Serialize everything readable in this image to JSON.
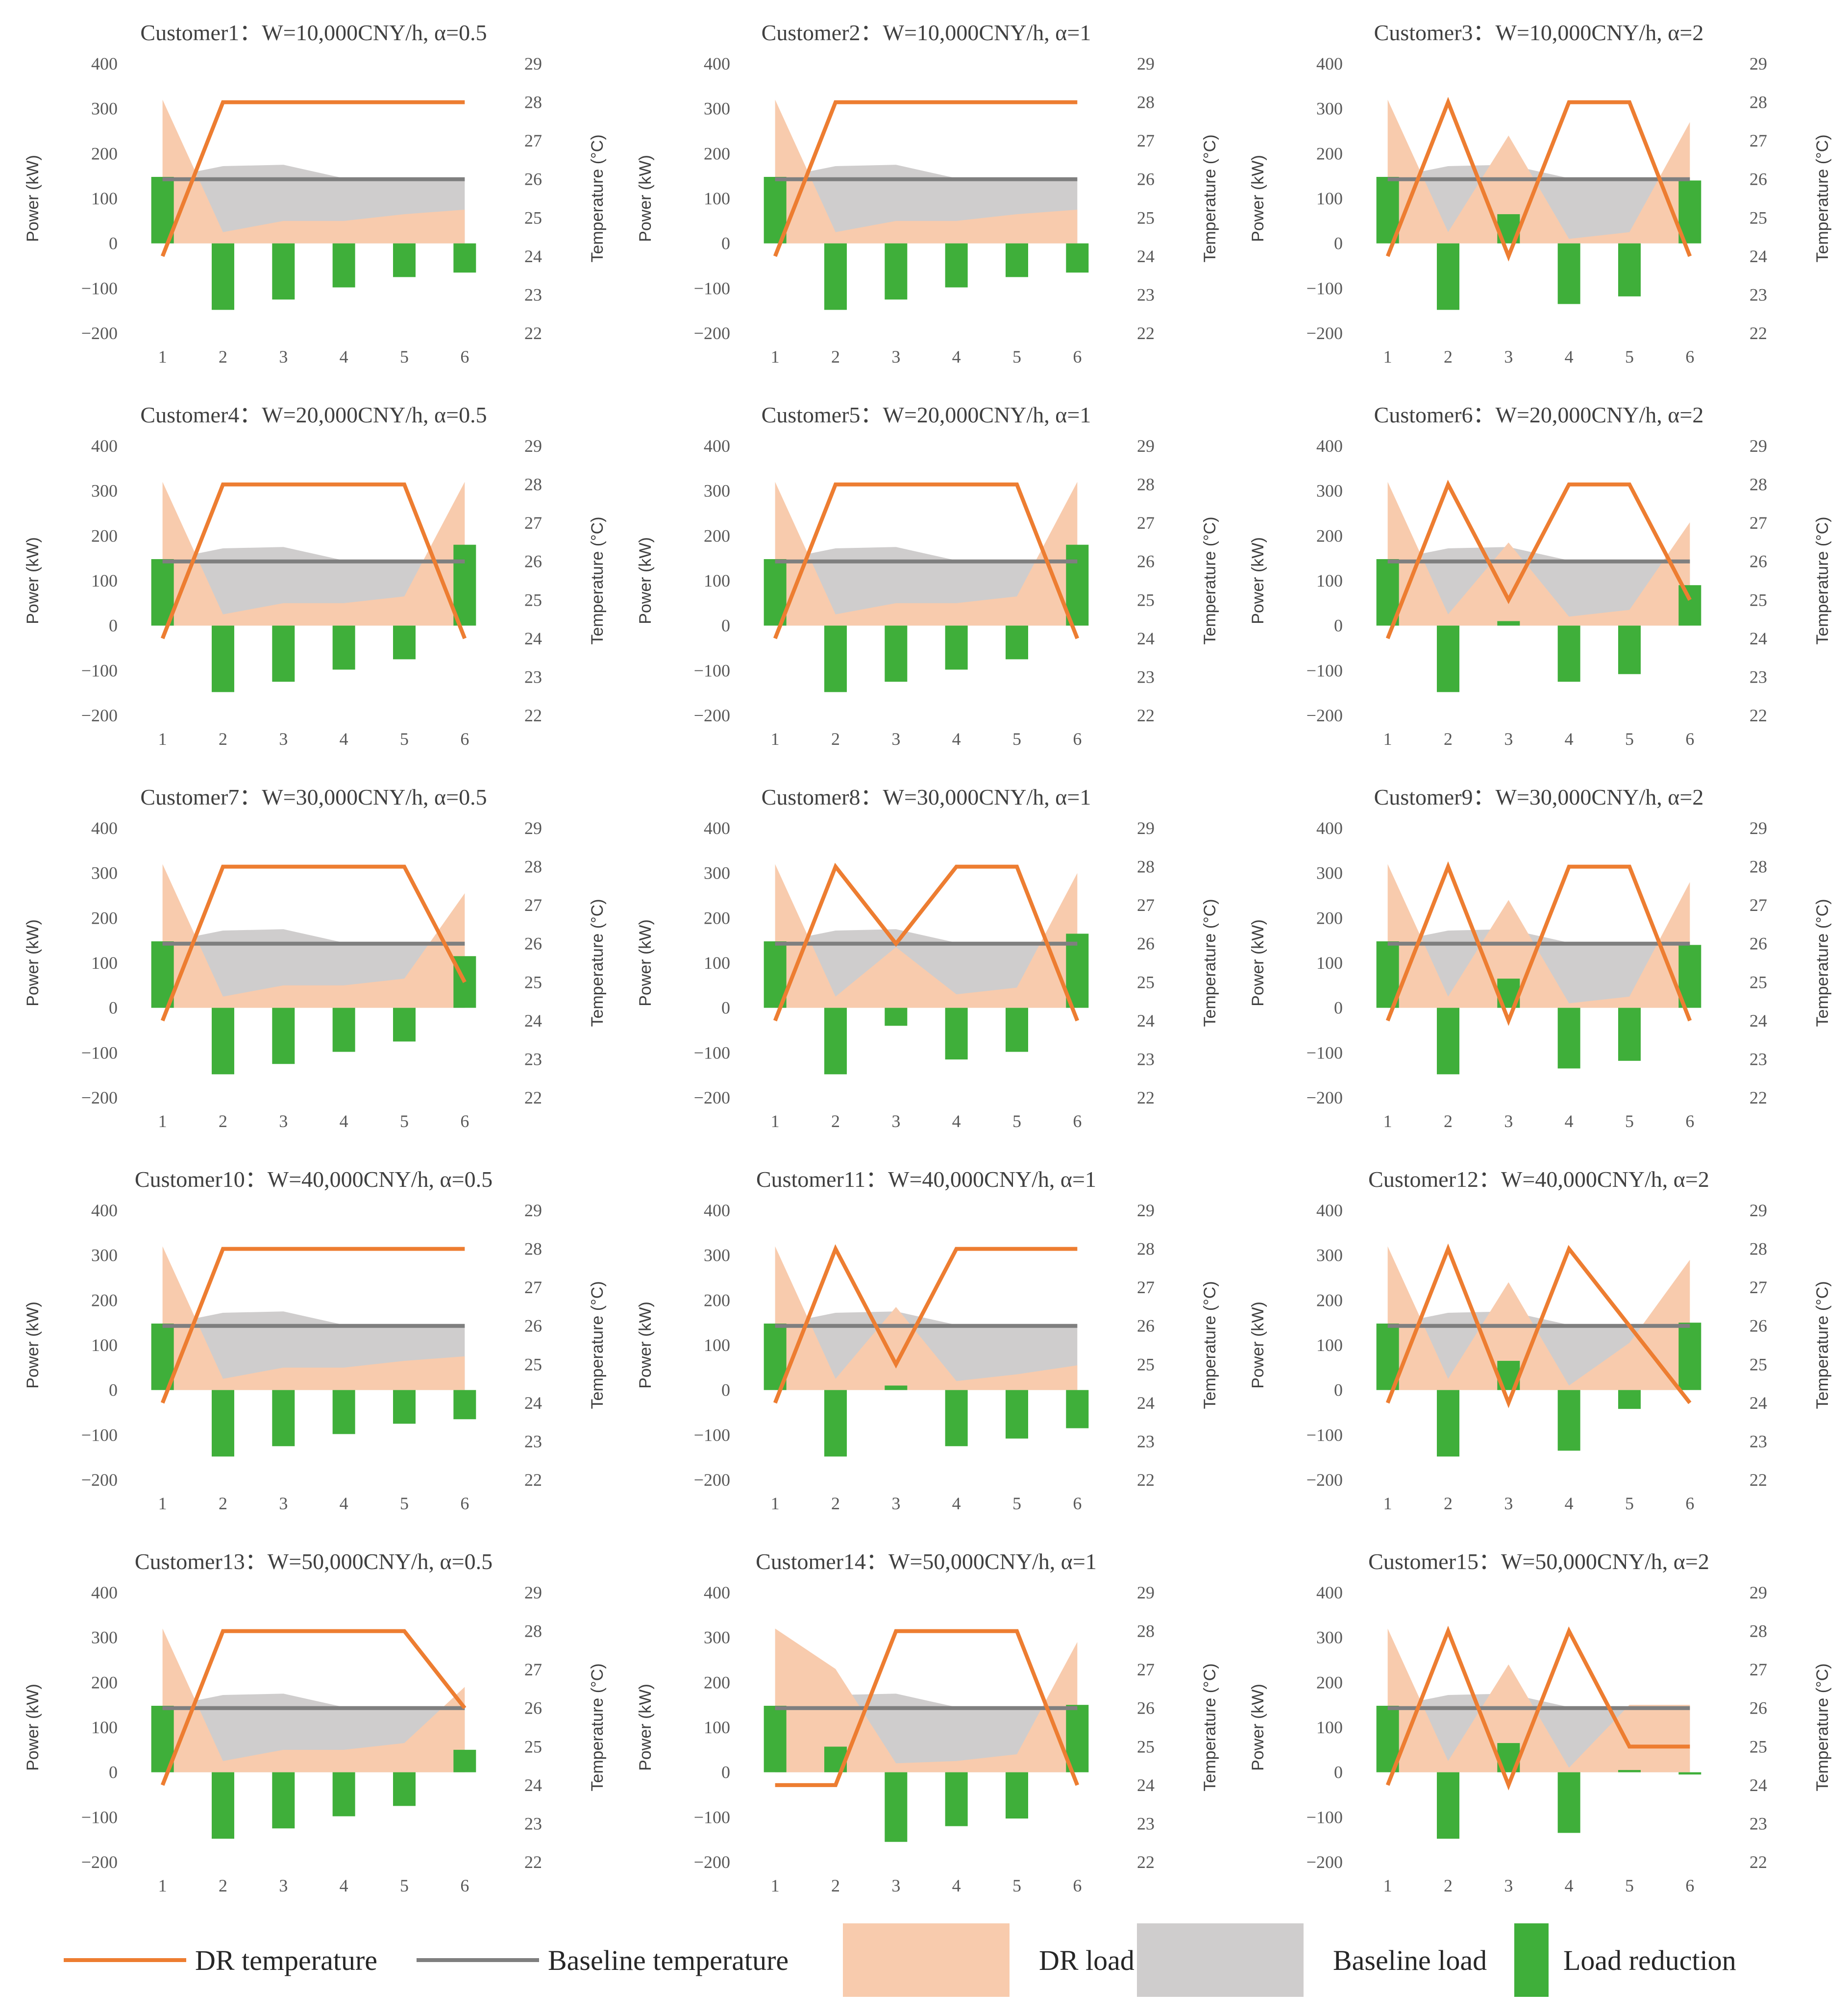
{
  "colors": {
    "dr_temperature": "#ED7D31",
    "baseline_temperature": "#7F7F7F",
    "dr_load": "#F8CBAD",
    "baseline_load": "#CFCDCD",
    "load_reduction": "#3FAF3A"
  },
  "legend": {
    "dr_temperature": "DR temperature",
    "baseline_temperature": "Baseline temperature",
    "dr_load": "DR load",
    "baseline_load": "Baseline load",
    "load_reduction": "Load reduction"
  },
  "axes": {
    "ylabel_left": "Power (kW)",
    "ylabel_right": "Temperature (°C)",
    "power_ticks": [
      "400",
      "300",
      "200",
      "100",
      "0",
      "−100",
      "−200"
    ],
    "temp_ticks": [
      "29",
      "28",
      "27",
      "26",
      "25",
      "24",
      "23",
      "22"
    ],
    "x_ticks": [
      "1",
      "2",
      "3",
      "4",
      "5",
      "6"
    ]
  },
  "chart_data": [
    {
      "type": "combo",
      "title": "Customer1：W=10,000CNY/h, α=0.5",
      "x": [
        1,
        2,
        3,
        4,
        5,
        6
      ],
      "ylim_left": [
        -200,
        400
      ],
      "ylim_right": [
        22,
        29
      ],
      "series": [
        {
          "name": "Baseline load",
          "values": [
            145,
            172,
            175,
            145,
            145,
            145
          ]
        },
        {
          "name": "DR load",
          "values": [
            320,
            25,
            50,
            50,
            65,
            75
          ]
        },
        {
          "name": "Load reduction",
          "values": [
            148,
            -148,
            -125,
            -98,
            -75,
            -65
          ]
        },
        {
          "name": "DR temperature",
          "values": [
            24,
            28,
            28,
            28,
            28,
            28
          ]
        },
        {
          "name": "Baseline temperature",
          "values": [
            26,
            26,
            26,
            26,
            26,
            26
          ]
        }
      ]
    },
    {
      "type": "combo",
      "title": "Customer2：W=10,000CNY/h, α=1",
      "x": [
        1,
        2,
        3,
        4,
        5,
        6
      ],
      "ylim_left": [
        -200,
        400
      ],
      "ylim_right": [
        22,
        29
      ],
      "series": [
        {
          "name": "Baseline load",
          "values": [
            145,
            172,
            175,
            145,
            145,
            145
          ]
        },
        {
          "name": "DR load",
          "values": [
            320,
            25,
            50,
            50,
            65,
            75
          ]
        },
        {
          "name": "Load reduction",
          "values": [
            148,
            -148,
            -125,
            -98,
            -75,
            -65
          ]
        },
        {
          "name": "DR temperature",
          "values": [
            24,
            28,
            28,
            28,
            28,
            28
          ]
        },
        {
          "name": "Baseline temperature",
          "values": [
            26,
            26,
            26,
            26,
            26,
            26
          ]
        }
      ]
    },
    {
      "type": "combo",
      "title": "Customer3：W=10,000CNY/h, α=2",
      "x": [
        1,
        2,
        3,
        4,
        5,
        6
      ],
      "ylim_left": [
        -200,
        400
      ],
      "ylim_right": [
        22,
        29
      ],
      "series": [
        {
          "name": "Baseline load",
          "values": [
            145,
            172,
            175,
            145,
            145,
            145
          ]
        },
        {
          "name": "DR load",
          "values": [
            320,
            25,
            240,
            10,
            25,
            270
          ]
        },
        {
          "name": "Load reduction",
          "values": [
            148,
            -148,
            65,
            -135,
            -118,
            140
          ]
        },
        {
          "name": "DR temperature",
          "values": [
            24,
            28,
            24,
            28,
            28,
            24
          ]
        },
        {
          "name": "Baseline temperature",
          "values": [
            26,
            26,
            26,
            26,
            26,
            26
          ]
        }
      ]
    },
    {
      "type": "combo",
      "title": "Customer4：W=20,000CNY/h, α=0.5",
      "x": [
        1,
        2,
        3,
        4,
        5,
        6
      ],
      "ylim_left": [
        -200,
        400
      ],
      "ylim_right": [
        22,
        29
      ],
      "series": [
        {
          "name": "Baseline load",
          "values": [
            145,
            172,
            175,
            145,
            145,
            145
          ]
        },
        {
          "name": "DR load",
          "values": [
            320,
            25,
            50,
            50,
            65,
            320
          ]
        },
        {
          "name": "Load reduction",
          "values": [
            148,
            -148,
            -125,
            -98,
            -75,
            180
          ]
        },
        {
          "name": "DR temperature",
          "values": [
            24,
            28,
            28,
            28,
            28,
            24
          ]
        },
        {
          "name": "Baseline temperature",
          "values": [
            26,
            26,
            26,
            26,
            26,
            26
          ]
        }
      ]
    },
    {
      "type": "combo",
      "title": "Customer5：W=20,000CNY/h, α=1",
      "x": [
        1,
        2,
        3,
        4,
        5,
        6
      ],
      "ylim_left": [
        -200,
        400
      ],
      "ylim_right": [
        22,
        29
      ],
      "series": [
        {
          "name": "Baseline load",
          "values": [
            145,
            172,
            175,
            145,
            145,
            145
          ]
        },
        {
          "name": "DR load",
          "values": [
            320,
            25,
            50,
            50,
            65,
            320
          ]
        },
        {
          "name": "Load reduction",
          "values": [
            148,
            -148,
            -125,
            -98,
            -75,
            180
          ]
        },
        {
          "name": "DR temperature",
          "values": [
            24,
            28,
            28,
            28,
            28,
            24
          ]
        },
        {
          "name": "Baseline temperature",
          "values": [
            26,
            26,
            26,
            26,
            26,
            26
          ]
        }
      ]
    },
    {
      "type": "combo",
      "title": "Customer6：W=20,000CNY/h, α=2",
      "x": [
        1,
        2,
        3,
        4,
        5,
        6
      ],
      "ylim_left": [
        -200,
        400
      ],
      "ylim_right": [
        22,
        29
      ],
      "series": [
        {
          "name": "Baseline load",
          "values": [
            145,
            172,
            175,
            145,
            145,
            145
          ]
        },
        {
          "name": "DR load",
          "values": [
            320,
            25,
            185,
            20,
            35,
            230
          ]
        },
        {
          "name": "Load reduction",
          "values": [
            148,
            -148,
            10,
            -125,
            -108,
            90
          ]
        },
        {
          "name": "DR temperature",
          "values": [
            24,
            28,
            25,
            28,
            28,
            25
          ]
        },
        {
          "name": "Baseline temperature",
          "values": [
            26,
            26,
            26,
            26,
            26,
            26
          ]
        }
      ]
    },
    {
      "type": "combo",
      "title": "Customer7：W=30,000CNY/h, α=0.5",
      "x": [
        1,
        2,
        3,
        4,
        5,
        6
      ],
      "ylim_left": [
        -200,
        400
      ],
      "ylim_right": [
        22,
        29
      ],
      "series": [
        {
          "name": "Baseline load",
          "values": [
            145,
            172,
            175,
            145,
            145,
            145
          ]
        },
        {
          "name": "DR load",
          "values": [
            320,
            25,
            50,
            50,
            65,
            255
          ]
        },
        {
          "name": "Load reduction",
          "values": [
            148,
            -148,
            -125,
            -98,
            -75,
            115
          ]
        },
        {
          "name": "DR temperature",
          "values": [
            24,
            28,
            28,
            28,
            28,
            25
          ]
        },
        {
          "name": "Baseline temperature",
          "values": [
            26,
            26,
            26,
            26,
            26,
            26
          ]
        }
      ]
    },
    {
      "type": "combo",
      "title": "Customer8：W=30,000CNY/h, α=1",
      "x": [
        1,
        2,
        3,
        4,
        5,
        6
      ],
      "ylim_left": [
        -200,
        400
      ],
      "ylim_right": [
        22,
        29
      ],
      "series": [
        {
          "name": "Baseline load",
          "values": [
            145,
            172,
            175,
            145,
            145,
            145
          ]
        },
        {
          "name": "DR load",
          "values": [
            320,
            25,
            135,
            30,
            45,
            300
          ]
        },
        {
          "name": "Load reduction",
          "values": [
            148,
            -148,
            -40,
            -115,
            -98,
            165
          ]
        },
        {
          "name": "DR temperature",
          "values": [
            24,
            28,
            26,
            28,
            28,
            24
          ]
        },
        {
          "name": "Baseline temperature",
          "values": [
            26,
            26,
            26,
            26,
            26,
            26
          ]
        }
      ]
    },
    {
      "type": "combo",
      "title": "Customer9：W=30,000CNY/h, α=2",
      "x": [
        1,
        2,
        3,
        4,
        5,
        6
      ],
      "ylim_left": [
        -200,
        400
      ],
      "ylim_right": [
        22,
        29
      ],
      "series": [
        {
          "name": "Baseline load",
          "values": [
            145,
            172,
            175,
            145,
            145,
            145
          ]
        },
        {
          "name": "DR load",
          "values": [
            320,
            25,
            240,
            10,
            25,
            280
          ]
        },
        {
          "name": "Load reduction",
          "values": [
            148,
            -148,
            65,
            -135,
            -118,
            140
          ]
        },
        {
          "name": "DR temperature",
          "values": [
            24,
            28,
            24,
            28,
            28,
            24
          ]
        },
        {
          "name": "Baseline temperature",
          "values": [
            26,
            26,
            26,
            26,
            26,
            26
          ]
        }
      ]
    },
    {
      "type": "combo",
      "title": "Customer10：W=40,000CNY/h, α=0.5",
      "x": [
        1,
        2,
        3,
        4,
        5,
        6
      ],
      "ylim_left": [
        -200,
        400
      ],
      "ylim_right": [
        22,
        29
      ],
      "series": [
        {
          "name": "Baseline load",
          "values": [
            145,
            172,
            175,
            145,
            145,
            145
          ]
        },
        {
          "name": "DR load",
          "values": [
            320,
            25,
            50,
            50,
            65,
            75
          ]
        },
        {
          "name": "Load reduction",
          "values": [
            148,
            -148,
            -125,
            -98,
            -75,
            -65
          ]
        },
        {
          "name": "DR temperature",
          "values": [
            24,
            28,
            28,
            28,
            28,
            28
          ]
        },
        {
          "name": "Baseline temperature",
          "values": [
            26,
            26,
            26,
            26,
            26,
            26
          ]
        }
      ]
    },
    {
      "type": "combo",
      "title": "Customer11：W=40,000CNY/h, α=1",
      "x": [
        1,
        2,
        3,
        4,
        5,
        6
      ],
      "ylim_left": [
        -200,
        400
      ],
      "ylim_right": [
        22,
        29
      ],
      "series": [
        {
          "name": "Baseline load",
          "values": [
            145,
            172,
            175,
            145,
            145,
            145
          ]
        },
        {
          "name": "DR load",
          "values": [
            320,
            25,
            185,
            20,
            35,
            55
          ]
        },
        {
          "name": "Load reduction",
          "values": [
            148,
            -148,
            10,
            -125,
            -108,
            -85
          ]
        },
        {
          "name": "DR temperature",
          "values": [
            24,
            28,
            25,
            28,
            28,
            28
          ]
        },
        {
          "name": "Baseline temperature",
          "values": [
            26,
            26,
            26,
            26,
            26,
            26
          ]
        }
      ]
    },
    {
      "type": "combo",
      "title": "Customer12：W=40,000CNY/h, α=2",
      "x": [
        1,
        2,
        3,
        4,
        5,
        6
      ],
      "ylim_left": [
        -200,
        400
      ],
      "ylim_right": [
        22,
        29
      ],
      "series": [
        {
          "name": "Baseline load",
          "values": [
            145,
            172,
            175,
            145,
            145,
            145
          ]
        },
        {
          "name": "DR load",
          "values": [
            320,
            25,
            240,
            10,
            105,
            290
          ]
        },
        {
          "name": "Load reduction",
          "values": [
            148,
            -148,
            65,
            -135,
            -42,
            150
          ]
        },
        {
          "name": "DR temperature",
          "values": [
            24,
            28,
            24,
            28,
            26,
            24
          ]
        },
        {
          "name": "Baseline temperature",
          "values": [
            26,
            26,
            26,
            26,
            26,
            26
          ]
        }
      ]
    },
    {
      "type": "combo",
      "title": "Customer13：W=50,000CNY/h, α=0.5",
      "x": [
        1,
        2,
        3,
        4,
        5,
        6
      ],
      "ylim_left": [
        -200,
        400
      ],
      "ylim_right": [
        22,
        29
      ],
      "series": [
        {
          "name": "Baseline load",
          "values": [
            145,
            172,
            175,
            145,
            145,
            145
          ]
        },
        {
          "name": "DR load",
          "values": [
            320,
            25,
            50,
            50,
            65,
            190
          ]
        },
        {
          "name": "Load reduction",
          "values": [
            148,
            -148,
            -125,
            -98,
            -75,
            50
          ]
        },
        {
          "name": "DR temperature",
          "values": [
            24,
            28,
            28,
            28,
            28,
            26
          ]
        },
        {
          "name": "Baseline temperature",
          "values": [
            26,
            26,
            26,
            26,
            26,
            26
          ]
        }
      ]
    },
    {
      "type": "combo",
      "title": "Customer14：W=50,000CNY/h, α=1",
      "x": [
        1,
        2,
        3,
        4,
        5,
        6
      ],
      "ylim_left": [
        -200,
        400
      ],
      "ylim_right": [
        22,
        29
      ],
      "series": [
        {
          "name": "Baseline load",
          "values": [
            145,
            172,
            175,
            145,
            145,
            145
          ]
        },
        {
          "name": "DR load",
          "values": [
            320,
            230,
            20,
            25,
            40,
            290
          ]
        },
        {
          "name": "Load reduction",
          "values": [
            148,
            57,
            -155,
            -120,
            -103,
            150
          ]
        },
        {
          "name": "DR temperature",
          "values": [
            24,
            24,
            28,
            28,
            28,
            24
          ]
        },
        {
          "name": "Baseline temperature",
          "values": [
            26,
            26,
            26,
            26,
            26,
            26
          ]
        }
      ]
    },
    {
      "type": "combo",
      "title": "Customer15：W=50,000CNY/h, α=2",
      "x": [
        1,
        2,
        3,
        4,
        5,
        6
      ],
      "ylim_left": [
        -200,
        400
      ],
      "ylim_right": [
        22,
        29
      ],
      "series": [
        {
          "name": "Baseline load",
          "values": [
            145,
            172,
            175,
            145,
            145,
            145
          ]
        },
        {
          "name": "DR load",
          "values": [
            320,
            25,
            240,
            10,
            150,
            150
          ]
        },
        {
          "name": "Load reduction",
          "values": [
            148,
            -148,
            65,
            -135,
            5,
            -5
          ]
        },
        {
          "name": "DR temperature",
          "values": [
            24,
            28,
            24,
            28,
            25,
            25
          ]
        },
        {
          "name": "Baseline temperature",
          "values": [
            26,
            26,
            26,
            26,
            26,
            26
          ]
        }
      ]
    }
  ]
}
